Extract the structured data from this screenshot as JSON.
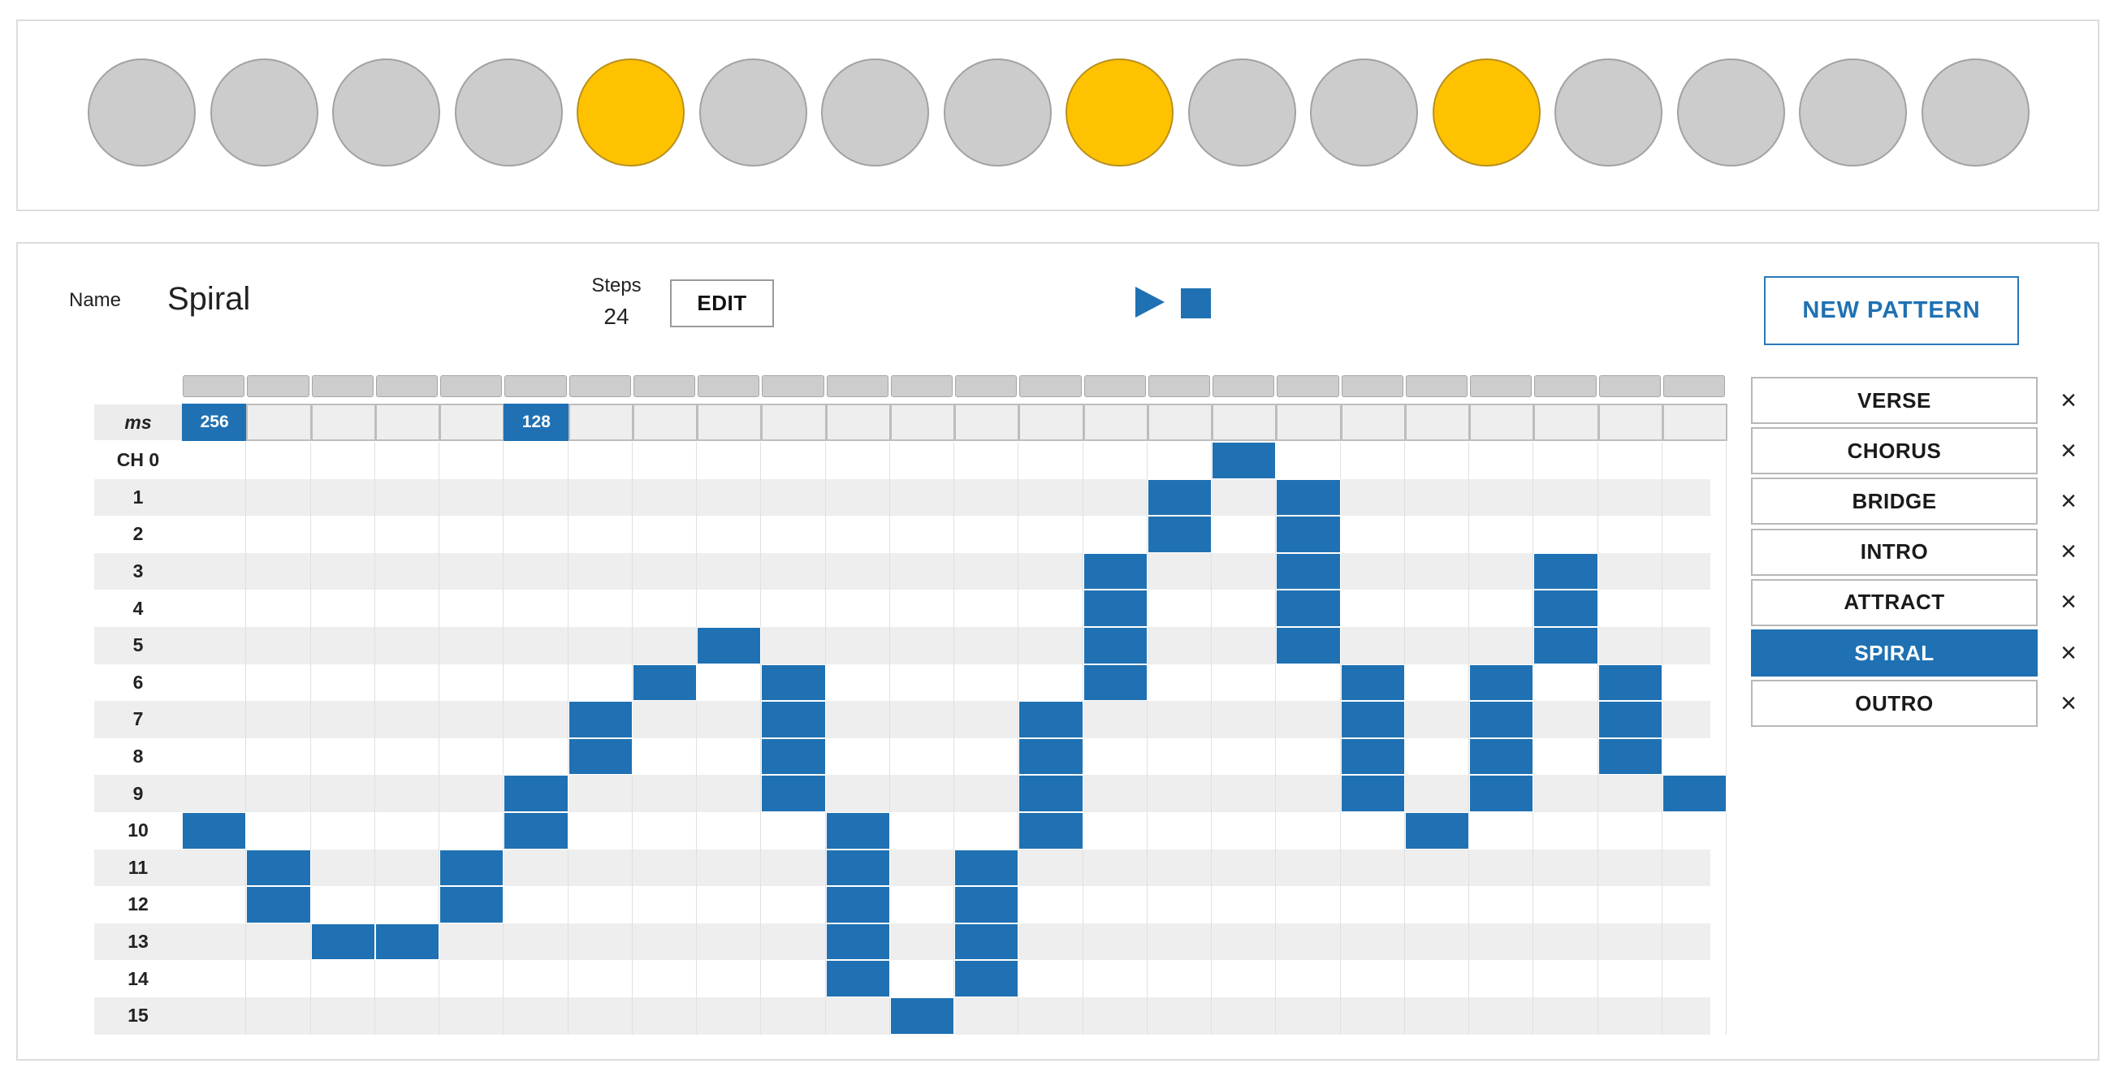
{
  "lights": [
    {
      "on": false
    },
    {
      "on": false
    },
    {
      "on": false
    },
    {
      "on": false
    },
    {
      "on": true
    },
    {
      "on": false
    },
    {
      "on": false
    },
    {
      "on": false
    },
    {
      "on": true
    },
    {
      "on": false
    },
    {
      "on": false
    },
    {
      "on": true
    },
    {
      "on": false
    },
    {
      "on": false
    },
    {
      "on": false
    },
    {
      "on": false
    }
  ],
  "colors": {
    "accent": "#1f71b3",
    "light_on": "#ffc200",
    "light_off": "#cccccc"
  },
  "editor": {
    "name_label": "Name",
    "pattern_name": "Spiral",
    "steps_label": "Steps",
    "steps_value": "24",
    "edit_label": "EDIT",
    "play_icon": "play-icon",
    "stop_icon": "stop-icon"
  },
  "patterns": {
    "new_label": "NEW PATTERN",
    "delete_glyph": "×",
    "items": [
      {
        "label": "VERSE",
        "active": false
      },
      {
        "label": "CHORUS",
        "active": false
      },
      {
        "label": "BRIDGE",
        "active": false
      },
      {
        "label": "INTRO",
        "active": false
      },
      {
        "label": "ATTRACT",
        "active": false
      },
      {
        "label": "SPIRAL",
        "active": true
      },
      {
        "label": "OUTRO",
        "active": false
      }
    ]
  },
  "grid": {
    "ms_label": "ms",
    "ms_values": [
      "256",
      "",
      "",
      "",
      "",
      "128",
      "",
      "",
      "",
      "",
      "",
      "",
      "",
      "",
      "",
      "",
      "",
      "",
      "",
      "",
      "",
      "",
      "",
      ""
    ],
    "row_labels": [
      "CH 0",
      "1",
      "2",
      "3",
      "4",
      "5",
      "6",
      "7",
      "8",
      "9",
      "10",
      "11",
      "12",
      "13",
      "14",
      "15"
    ],
    "active": [
      [
        16
      ],
      [
        15,
        17
      ],
      [
        15,
        17
      ],
      [
        14,
        17,
        21
      ],
      [
        14,
        17,
        21
      ],
      [
        8,
        14,
        17,
        21
      ],
      [
        7,
        9,
        14,
        18,
        20,
        22
      ],
      [
        6,
        9,
        13,
        18,
        20,
        22
      ],
      [
        6,
        9,
        13,
        18,
        20,
        22
      ],
      [
        5,
        9,
        13,
        18,
        20,
        23
      ],
      [
        0,
        5,
        10,
        13,
        19
      ],
      [
        1,
        4,
        10,
        12
      ],
      [
        1,
        4,
        10,
        12
      ],
      [
        2,
        3,
        10,
        12
      ],
      [
        10,
        12
      ],
      [
        11
      ]
    ]
  }
}
